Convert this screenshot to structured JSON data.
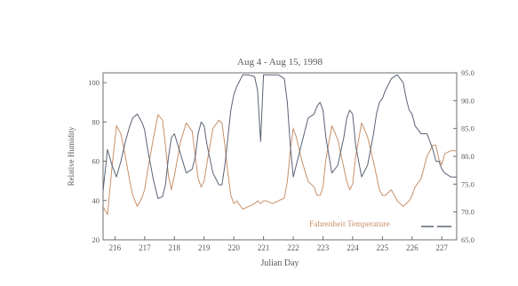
{
  "chart_data": {
    "type": "line",
    "title": "Aug 4 - Aug 15, 1998",
    "xlabel": "Julian Day",
    "ylabel_left": "Relative Humidity",
    "ylabel_right": "",
    "xlim": [
      215.6,
      227.5
    ],
    "ylim_left": [
      20,
      105
    ],
    "ylim_right": [
      65,
      95
    ],
    "x_ticks": [
      216,
      217,
      218,
      219,
      220,
      221,
      222,
      223,
      224,
      225,
      226,
      227
    ],
    "y_ticks_left": [
      20,
      40,
      60,
      80,
      100
    ],
    "y_ticks_right": [
      "65.0",
      "70.0",
      "75.0",
      "80.0",
      "85.0",
      "90.0",
      "95.0"
    ],
    "grid": false,
    "legend_position": "bottom-right",
    "colors": {
      "humidity": "#5a6275",
      "temperature": "#c8906a",
      "axis": "#6e6e6e"
    },
    "series": [
      {
        "name": "Fahrenheit Temperature",
        "axis": "right",
        "x": [
          215.6,
          215.75,
          215.9,
          216.05,
          216.2,
          216.35,
          216.5,
          216.6,
          216.75,
          216.9,
          217.0,
          217.1,
          217.3,
          217.45,
          217.6,
          217.7,
          217.8,
          217.9,
          218.0,
          218.2,
          218.4,
          218.6,
          218.7,
          218.8,
          218.9,
          219.0,
          219.1,
          219.3,
          219.5,
          219.6,
          219.7,
          219.8,
          219.9,
          220.0,
          220.1,
          220.3,
          220.5,
          220.7,
          220.8,
          220.9,
          221.0,
          221.1,
          221.3,
          221.5,
          221.7,
          221.8,
          221.9,
          222.0,
          222.1,
          222.3,
          222.5,
          222.7,
          222.8,
          222.9,
          223.0,
          223.1,
          223.3,
          223.5,
          223.7,
          223.8,
          223.9,
          224.0,
          224.1,
          224.3,
          224.5,
          224.7,
          224.8,
          224.9,
          225.0,
          225.1,
          225.3,
          225.5,
          225.7,
          225.8,
          225.9,
          226.0,
          226.1,
          226.3,
          226.5,
          226.7,
          226.8,
          226.9,
          227.0,
          227.1,
          227.3,
          227.5
        ],
        "y": [
          71.0,
          69.5,
          78.0,
          85.5,
          84.0,
          80.0,
          75.5,
          73.0,
          71.0,
          72.5,
          74.0,
          77.5,
          83.5,
          87.5,
          86.5,
          82.0,
          76.5,
          74.0,
          76.5,
          82.5,
          86.0,
          84.5,
          80.0,
          76.0,
          74.5,
          75.5,
          79.0,
          85.0,
          86.5,
          86.0,
          82.0,
          77.0,
          73.0,
          71.5,
          72.0,
          70.5,
          71.0,
          71.5,
          72.0,
          71.5,
          72.0,
          72.0,
          71.5,
          72.0,
          72.5,
          75.5,
          81.0,
          85.0,
          83.5,
          79.0,
          75.5,
          74.5,
          73.0,
          73.0,
          74.5,
          79.5,
          85.5,
          83.0,
          78.0,
          75.5,
          74.0,
          75.0,
          80.0,
          86.0,
          83.5,
          79.0,
          76.5,
          74.0,
          73.0,
          73.0,
          74.0,
          72.0,
          71.0,
          71.5,
          72.0,
          73.0,
          74.5,
          76.0,
          80.0,
          82.0,
          82.0,
          79.5,
          78.5,
          80.5,
          81.0,
          81.0
        ]
      },
      {
        "name": "",
        "axis": "left",
        "x": [
          215.6,
          215.75,
          215.9,
          216.05,
          216.2,
          216.35,
          216.5,
          216.6,
          216.75,
          216.9,
          217.0,
          217.1,
          217.3,
          217.45,
          217.6,
          217.7,
          217.8,
          217.9,
          218.0,
          218.2,
          218.4,
          218.6,
          218.7,
          218.8,
          218.9,
          219.0,
          219.1,
          219.3,
          219.5,
          219.6,
          219.7,
          219.8,
          219.9,
          220.0,
          220.1,
          220.3,
          220.5,
          220.7,
          220.8,
          220.9,
          221.0,
          221.1,
          221.3,
          221.5,
          221.7,
          221.8,
          221.9,
          222.0,
          222.1,
          222.3,
          222.5,
          222.7,
          222.8,
          222.9,
          223.0,
          223.1,
          223.3,
          223.5,
          223.7,
          223.8,
          223.9,
          224.0,
          224.1,
          224.3,
          224.5,
          224.7,
          224.8,
          224.9,
          225.0,
          225.1,
          225.3,
          225.5,
          225.7,
          225.8,
          225.9,
          226.0,
          226.1,
          226.3,
          226.5,
          226.7,
          226.8,
          226.9,
          227.0,
          227.1,
          227.3,
          227.5
        ],
        "y": [
          45,
          66,
          58,
          52,
          60,
          70,
          78,
          82,
          84,
          80,
          76,
          66,
          50,
          41,
          42,
          48,
          62,
          72,
          74,
          64,
          54,
          56,
          62,
          74,
          80,
          78,
          68,
          54,
          48,
          48,
          58,
          72,
          86,
          94,
          98,
          104,
          104,
          103,
          96,
          70,
          104,
          104,
          104,
          104,
          102,
          90,
          68,
          52,
          58,
          70,
          82,
          84,
          88,
          90,
          86,
          72,
          54,
          58,
          72,
          82,
          86,
          84,
          68,
          52,
          58,
          74,
          84,
          90,
          92,
          96,
          102,
          104,
          100,
          92,
          86,
          84,
          78,
          74,
          74,
          66,
          60,
          60,
          56,
          54,
          52,
          52
        ]
      }
    ]
  }
}
